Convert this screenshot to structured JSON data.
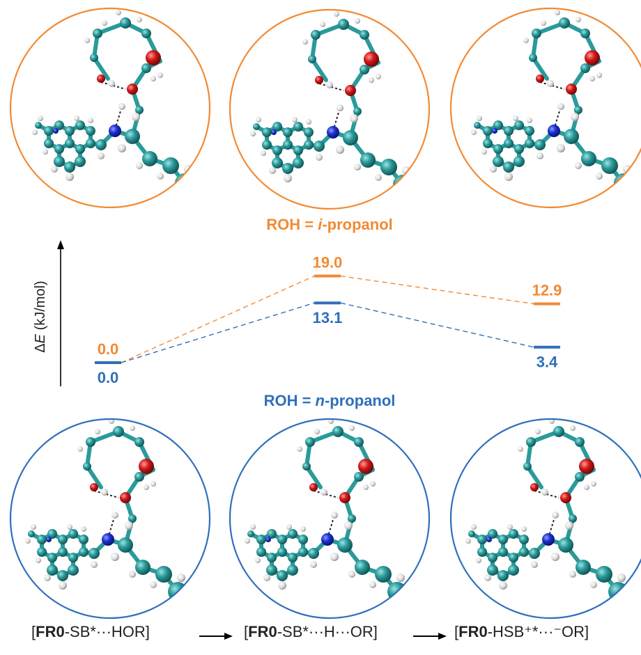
{
  "energy_axis_label": "ΔE (kJ/mol)",
  "series": [
    {
      "name": "ROH = i-propanol",
      "name_prefix": "ROH = ",
      "name_italic": "i",
      "name_suffix": "-propanol",
      "color": "#f28a33",
      "values": [
        0.0,
        19.0,
        12.9
      ],
      "labels": [
        "0.0",
        "19.0",
        "12.9"
      ]
    },
    {
      "name": "ROH = n-propanol",
      "name_prefix": "ROH = ",
      "name_italic": "n",
      "name_suffix": "-propanol",
      "color": "#2f6fba",
      "values": [
        0.0,
        13.1,
        3.4
      ],
      "labels": [
        "0.0",
        "13.1",
        "3.4"
      ]
    }
  ],
  "states": [
    {
      "bold": "FR0",
      "pre": "[",
      "post": "-SB*···HOR]"
    },
    {
      "bold": "FR0",
      "pre": "[",
      "post": "-SB*···H···OR]"
    },
    {
      "bold": "FR0",
      "pre": "[",
      "post": "-HSB⁺*···⁻OR]"
    }
  ],
  "colors": {
    "carbon": "#2a9a9a",
    "oxygen": "#d01818",
    "nitrogen": "#1a2fd0",
    "hydrogen": "#e8e8e8"
  }
}
